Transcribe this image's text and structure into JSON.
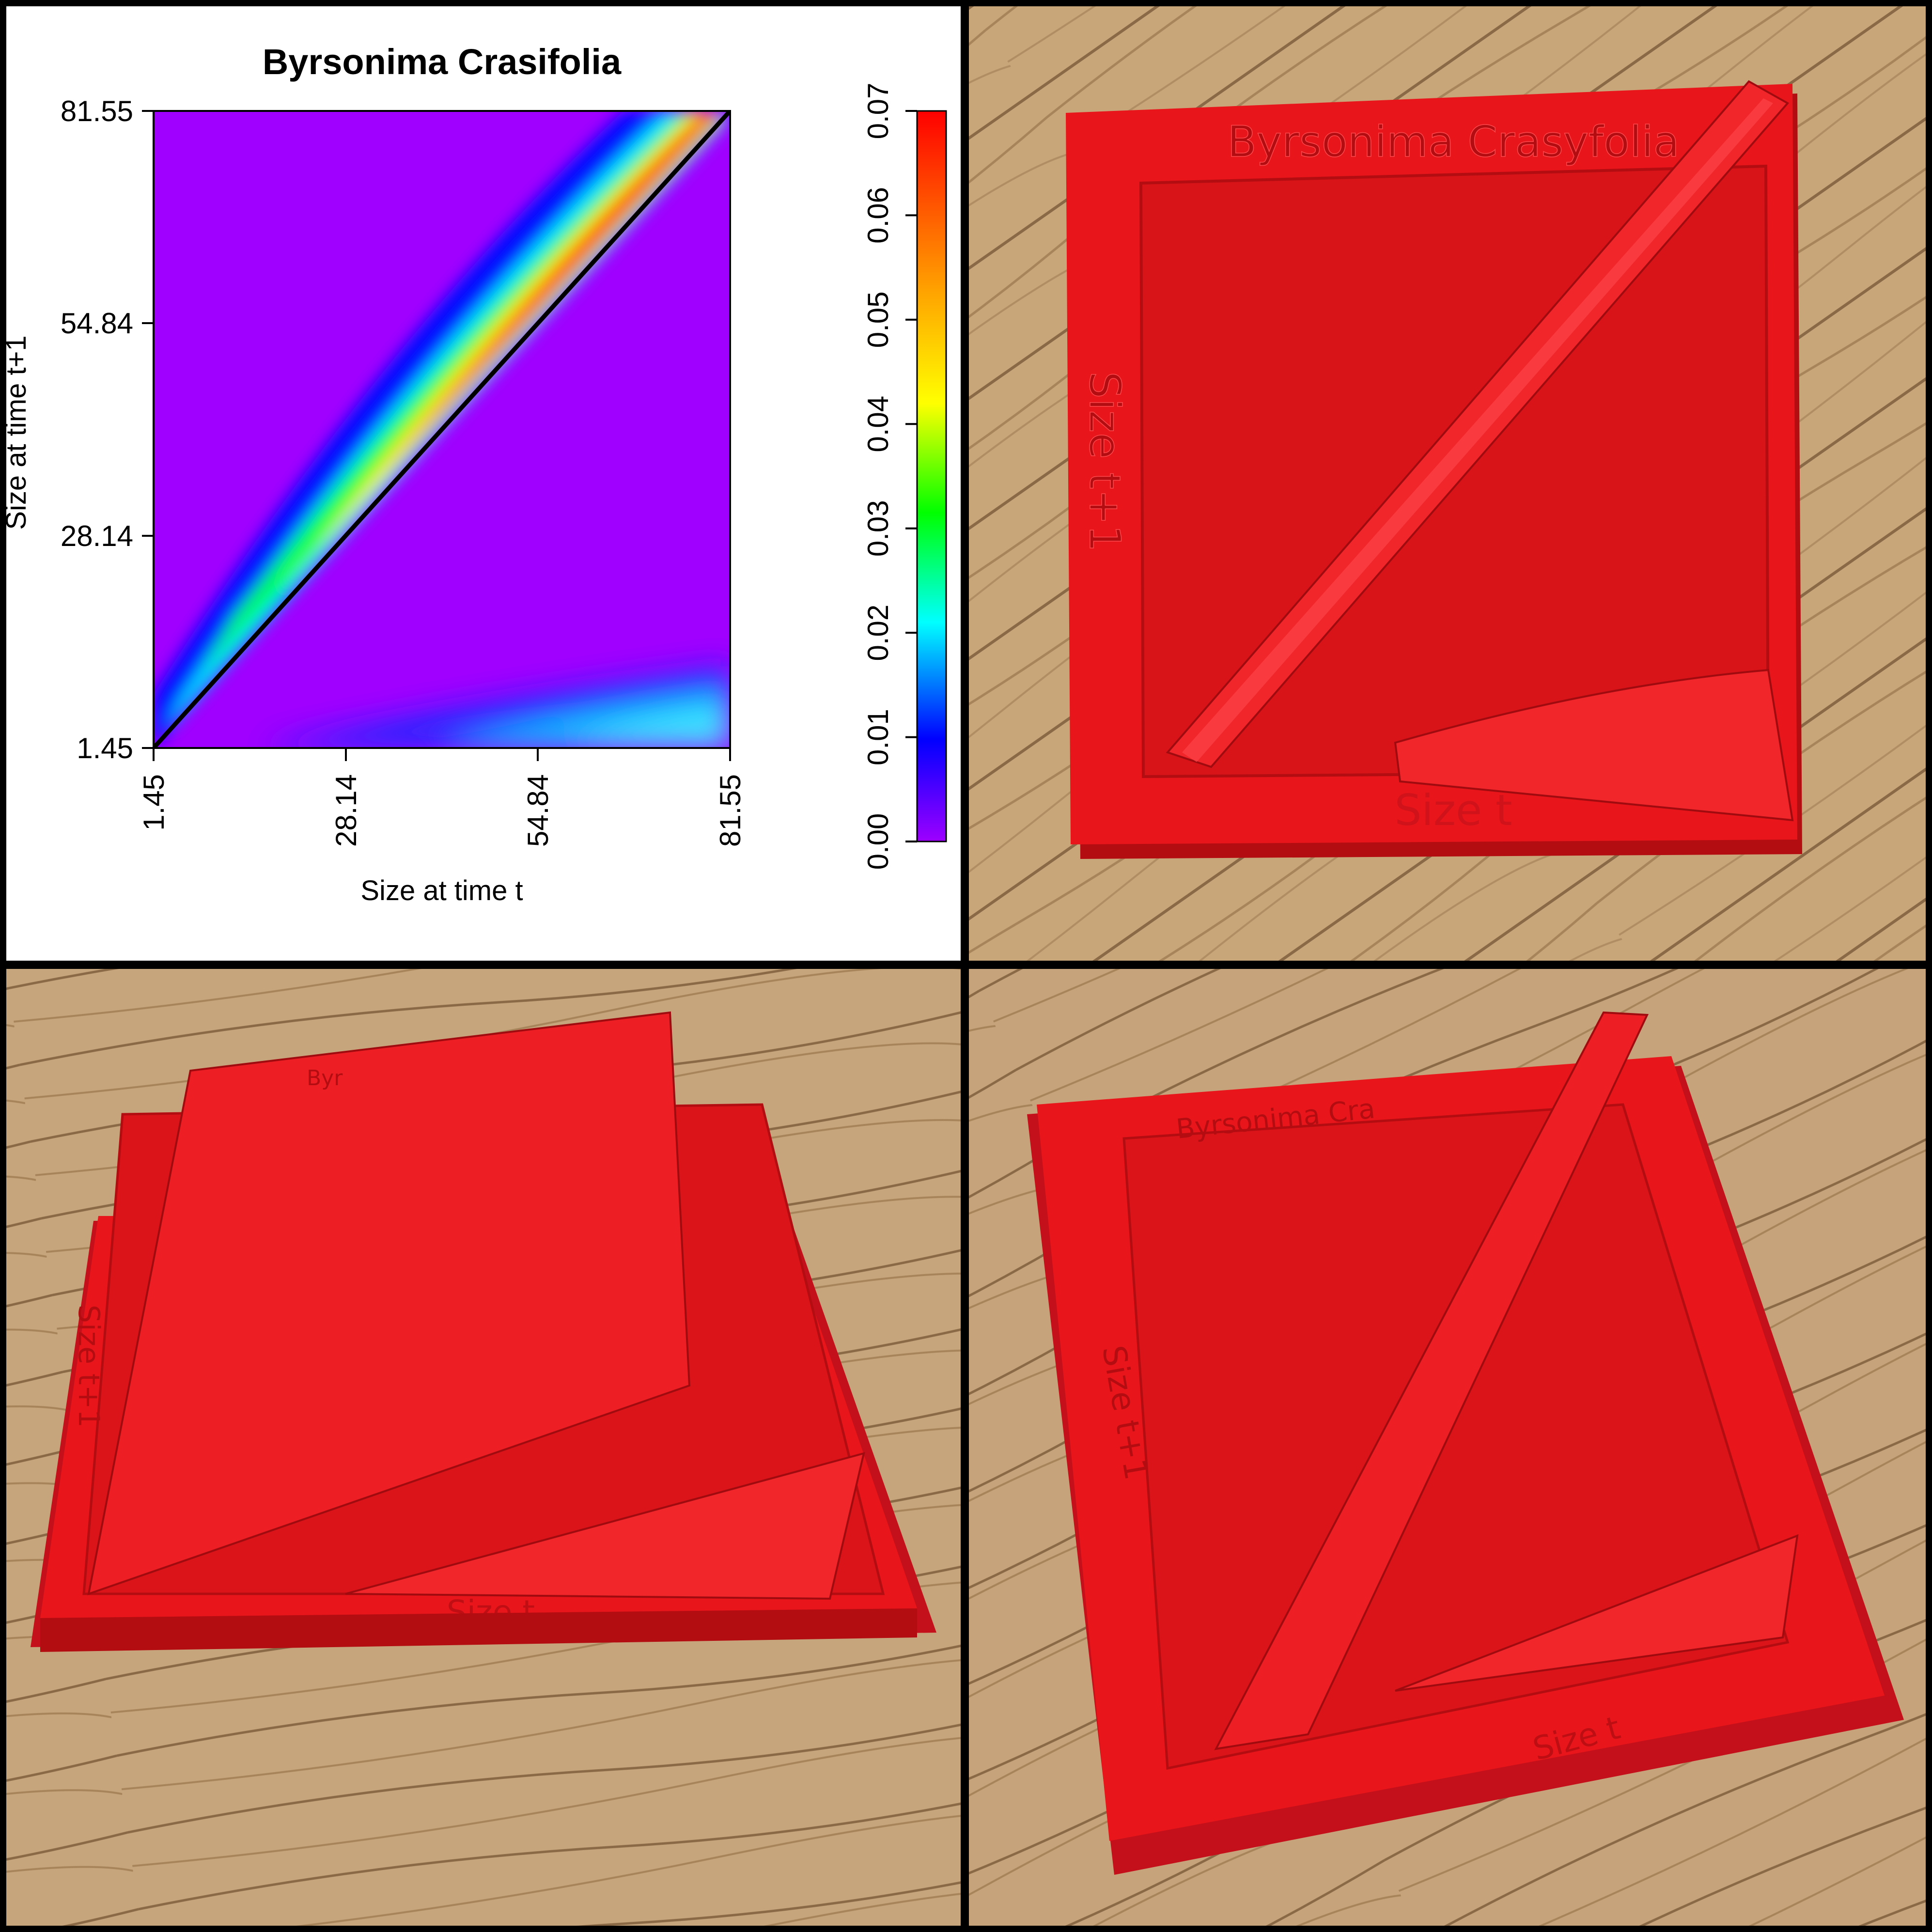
{
  "chart_data": {
    "type": "heatmap",
    "title": "Byrsonima Crasifolia",
    "xlabel": "Size at time t",
    "ylabel": "Size at time t+1",
    "x_ticks": [
      "1.45",
      "28.14",
      "54.84",
      "81.55"
    ],
    "y_ticks": [
      "1.45",
      "28.14",
      "54.84",
      "81.55"
    ],
    "xlim": [
      1.45,
      81.55
    ],
    "ylim": [
      1.45,
      81.55
    ],
    "colorbar": {
      "ticks": [
        "0.00",
        "0.01",
        "0.02",
        "0.03",
        "0.04",
        "0.05",
        "0.06",
        "0.07"
      ],
      "range": [
        0.0,
        0.07
      ],
      "palette": "rainbow (violet-blue-cyan-green-yellow-orange-red)"
    },
    "reference_line": "y = x (black)",
    "ridge": "peak density (~0.07) along a band slightly above y = x, widening with size; weak secondary density (~0.01–0.02) near small size at t+1 for large size at t"
  },
  "photos": {
    "top_right": {
      "labels": [
        "Byrsonima Crasyfolia",
        "Size t+1",
        "Size t"
      ]
    },
    "bottom_left": {
      "labels": [
        "Byr",
        "Size t+1",
        "Size t"
      ]
    },
    "bottom_right": {
      "labels": [
        "Byrsonima Cra",
        "Size t+1",
        "Size t"
      ]
    }
  },
  "colors": {
    "print_red": "#e8151b",
    "print_shadow": "#b30d12",
    "wood_light": "#c9a67a",
    "wood_dark": "#8a6a46"
  }
}
